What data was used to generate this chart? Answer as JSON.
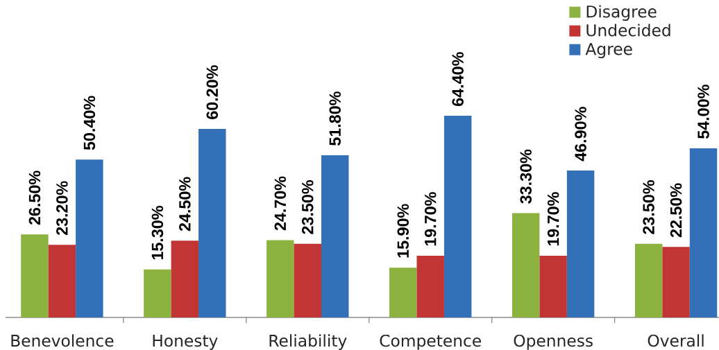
{
  "chart_data": {
    "type": "bar",
    "categories": [
      "Benevolence",
      "Honesty",
      "Reliability",
      "Competence",
      "Openness",
      "Overall"
    ],
    "series": [
      {
        "name": "Disagree",
        "color": "#8cb240",
        "values": [
          26.5,
          15.3,
          24.7,
          15.9,
          33.3,
          23.5
        ],
        "value_labels": [
          "26.50%",
          "15.30%",
          "24.70%",
          "15.90%",
          "33.30%",
          "23.50%"
        ]
      },
      {
        "name": "Undecided",
        "color": "#c13634",
        "values": [
          23.2,
          24.5,
          23.5,
          19.7,
          19.7,
          22.5
        ],
        "value_labels": [
          "23.20%",
          "24.50%",
          "23.50%",
          "19.70%",
          "19.70%",
          "22.50%"
        ]
      },
      {
        "name": "Agree",
        "color": "#3470b8",
        "values": [
          50.4,
          60.2,
          51.8,
          64.4,
          46.9,
          54.0
        ],
        "value_labels": [
          "50.40%",
          "60.20%",
          "51.80%",
          "64.40%",
          "46.90%",
          "54.00%"
        ]
      }
    ],
    "legend": "top right"
  }
}
